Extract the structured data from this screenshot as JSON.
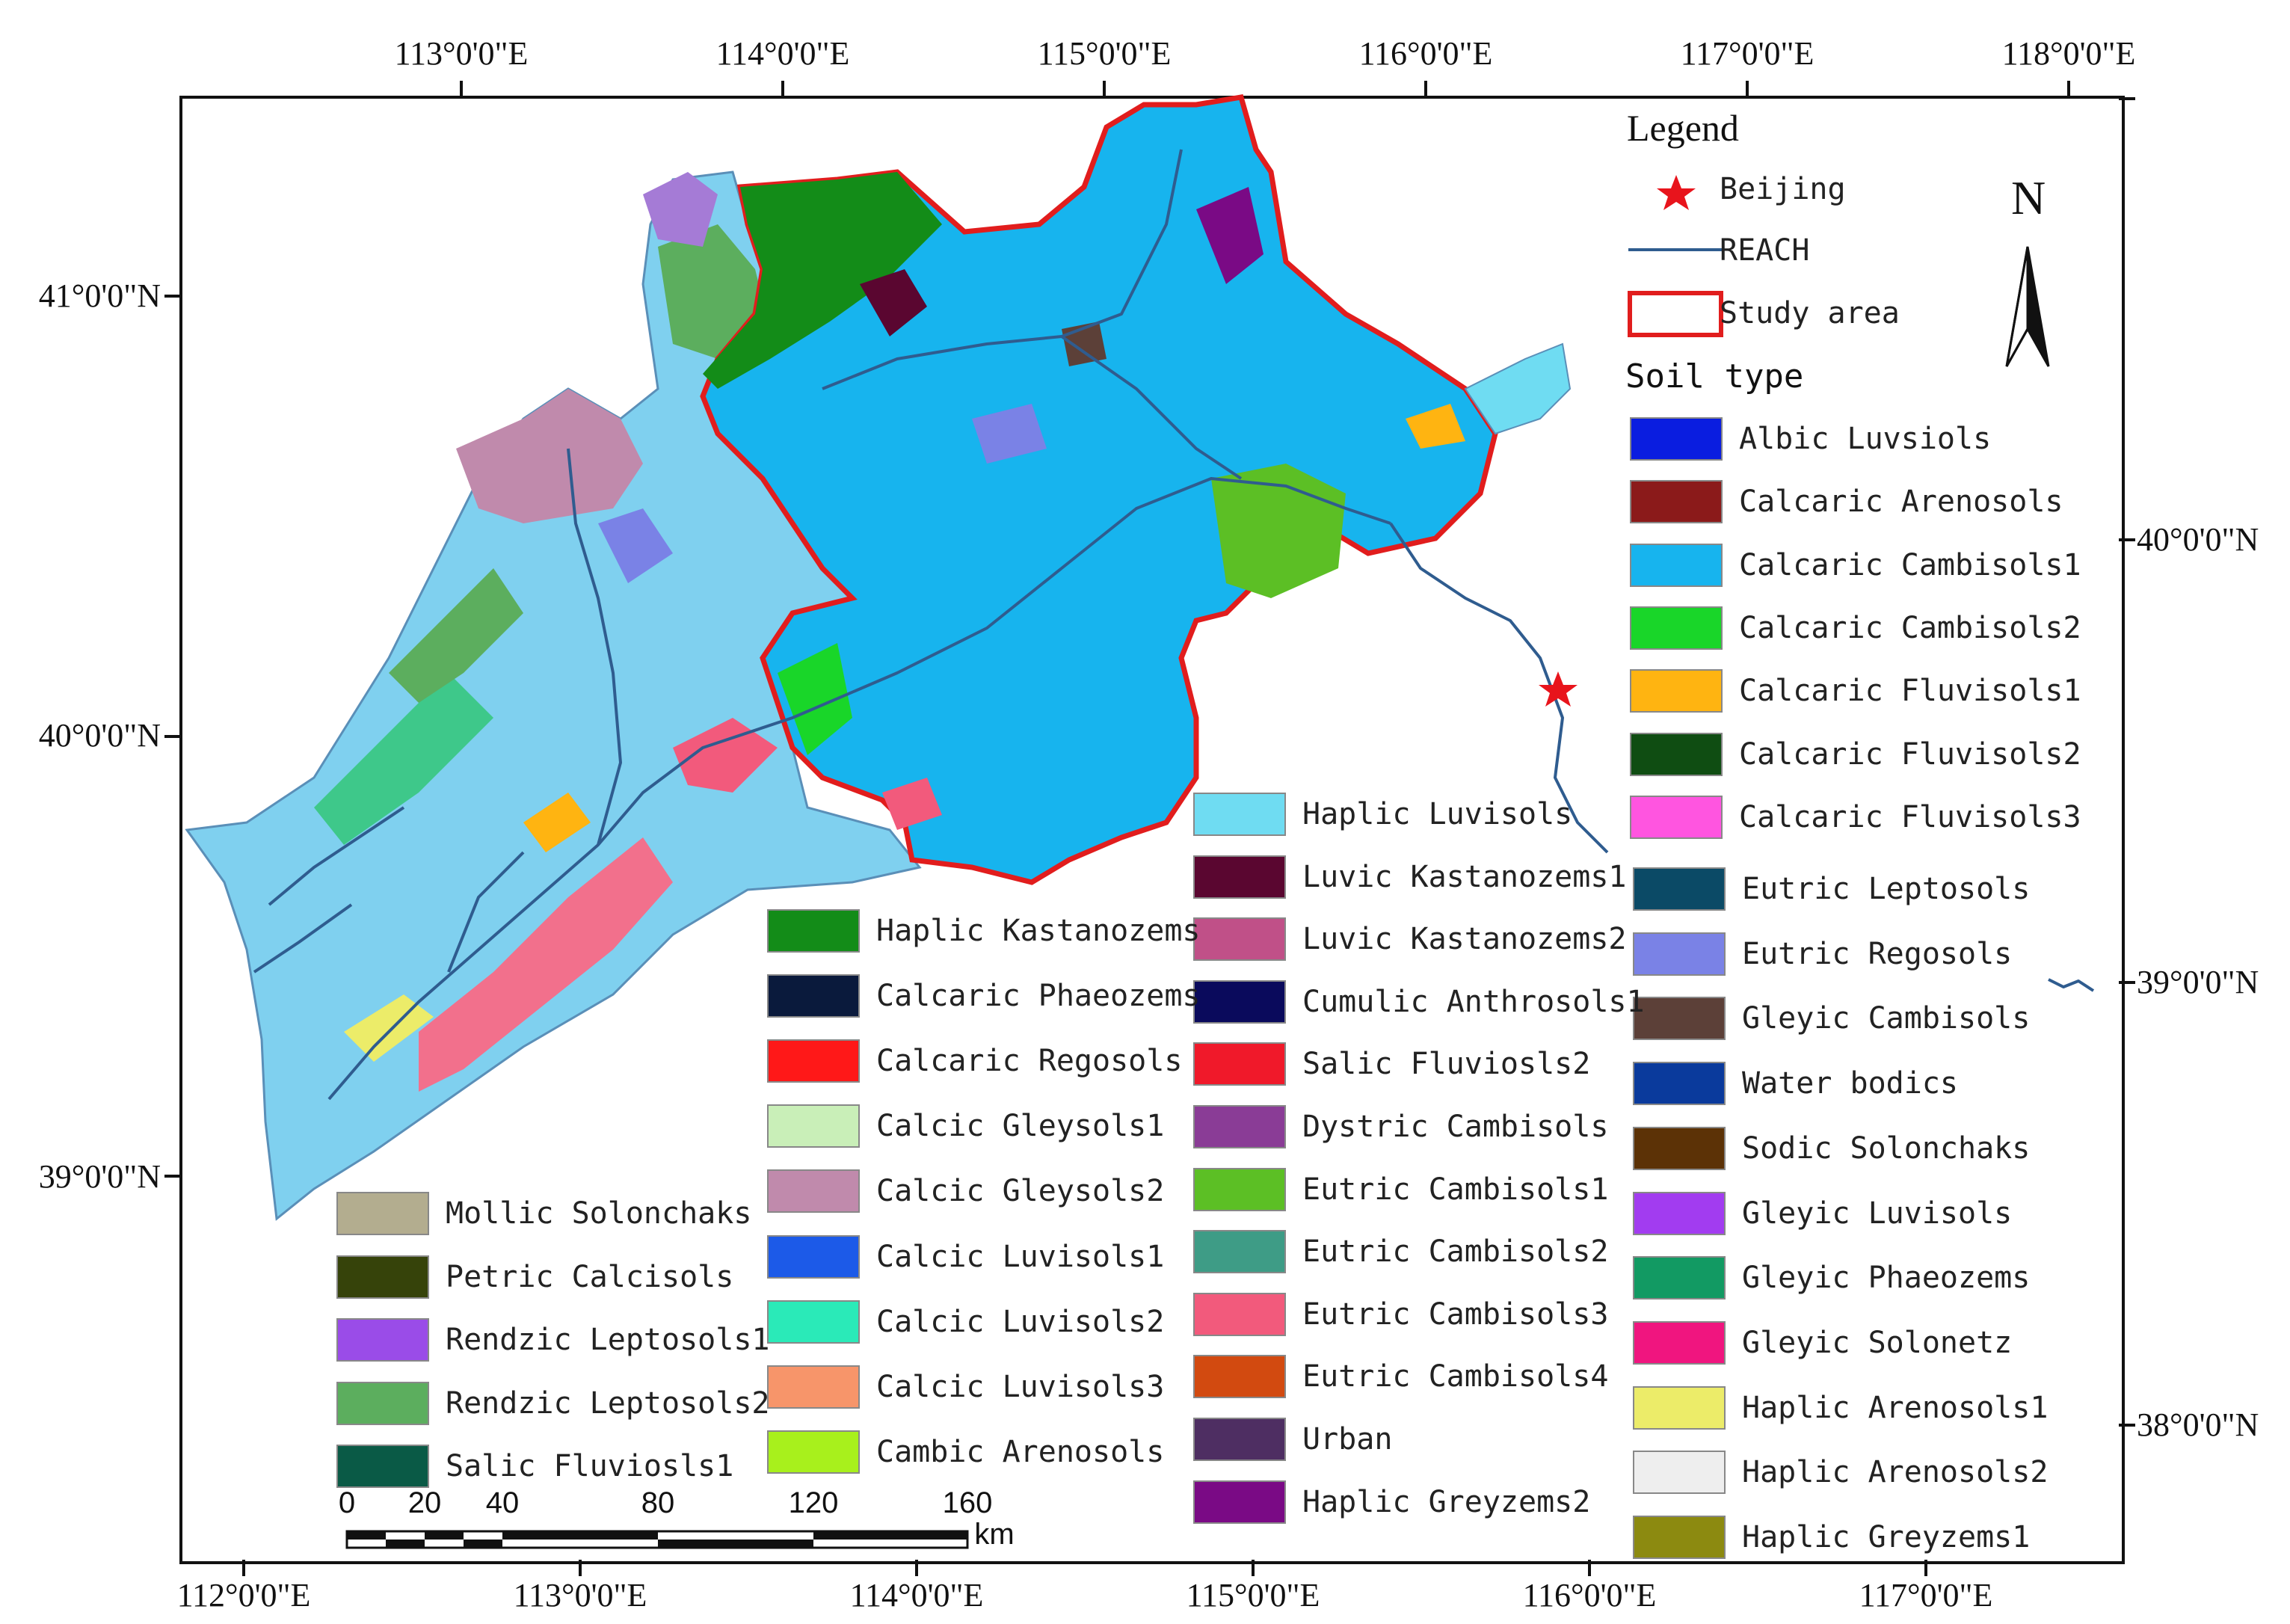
{
  "axes": {
    "top_lon": [
      "113°0'0\"E",
      "114°0'0\"E",
      "115°0'0\"E",
      "116°0'0\"E",
      "117°0'0\"E",
      "118°0'0\"E"
    ],
    "bottom_lon": [
      "112°0'0\"E",
      "113°0'0\"E",
      "114°0'0\"E",
      "115°0'0\"E",
      "116°0'0\"E",
      "117°0'0\"E"
    ],
    "left_lat": [
      "41°0'0\"N",
      "40°0'0\"N",
      "39°0'0\"N"
    ],
    "right_lat": [
      "40°0'0\"N",
      "39°0'0\"N",
      "38°0'0\"N"
    ]
  },
  "legend": {
    "title": "Legend",
    "beijing": "Beijing",
    "reach": "REACH",
    "study_area": "Study area",
    "soil_type_title": "Soil type",
    "colors": {
      "beijing": "#e8141c",
      "reach": "#2f5c8f",
      "study_area": "#e11d1d"
    }
  },
  "north_arrow": "N",
  "scale_bar": {
    "labels": [
      "0",
      "20",
      "40",
      "80",
      "120",
      "160"
    ],
    "unit": "km"
  },
  "soil_types": [
    {
      "name": "Albic Luvsiols",
      "color": "#0a1de0"
    },
    {
      "name": "Calcaric Arenosols",
      "color": "#8b1a1a"
    },
    {
      "name": "Calcaric Cambisols1",
      "color": "#17b4ee"
    },
    {
      "name": "Calcaric Cambisols2",
      "color": "#19d629"
    },
    {
      "name": "Calcaric Fluvisols1",
      "color": "#ffb411"
    },
    {
      "name": "Calcaric Fluvisols2",
      "color": "#0f4d12"
    },
    {
      "name": "Calcaric Fluvisols3",
      "color": "#ff55e0"
    },
    {
      "name": "Eutric Leptosols",
      "color": "#0b4a66"
    },
    {
      "name": "Eutric Regosols",
      "color": "#7a82e6"
    },
    {
      "name": "Gleyic Cambisols",
      "color": "#5c4038"
    },
    {
      "name": "Water bodics",
      "color": "#0a3a9c"
    },
    {
      "name": "Sodic Solonchaks",
      "color": "#5c3206"
    },
    {
      "name": "Gleyic Luvisols",
      "color": "#a23cf0"
    },
    {
      "name": "Gleyic Phaeozems",
      "color": "#129a63"
    },
    {
      "name": "Gleyic Solonetz",
      "color": "#f0157f"
    },
    {
      "name": "Haplic Arenosols1",
      "color": "#ecec69"
    },
    {
      "name": "Haplic Arenosols2",
      "color": "#eeeeee"
    },
    {
      "name": "Haplic Greyzems1",
      "color": "#8c8a10"
    },
    {
      "name": "Haplic Luvisols",
      "color": "#6fdcf2"
    },
    {
      "name": "Luvic Kastanozems1",
      "color": "#5a0630"
    },
    {
      "name": "Luvic Kastanozems2",
      "color": "#c05088"
    },
    {
      "name": "Cumulic Anthrosols1",
      "color": "#0a0a5c"
    },
    {
      "name": "Salic Fluviosls2",
      "color": "#f0192a"
    },
    {
      "name": "Dystric Cambisols",
      "color": "#8a3c96"
    },
    {
      "name": "Eutric Cambisols1",
      "color": "#5cbf25"
    },
    {
      "name": "Eutric Cambisols2",
      "color": "#3e9c86"
    },
    {
      "name": "Eutric Cambisols3",
      "color": "#f25a7c"
    },
    {
      "name": "Eutric Cambisols4",
      "color": "#d24a10"
    },
    {
      "name": "Urban",
      "color": "#4e2e62"
    },
    {
      "name": "Haplic Greyzems2",
      "color": "#7a0a85"
    },
    {
      "name": "Haplic Kastanozems",
      "color": "#138c18"
    },
    {
      "name": "Calcaric Phaeozems",
      "color": "#0a1a3c"
    },
    {
      "name": "Calcaric Regosols",
      "color": "#ff1818"
    },
    {
      "name": "Calcic Gleysols1",
      "color": "#c9efb8"
    },
    {
      "name": "Calcic Gleysols2",
      "color": "#c08aac"
    },
    {
      "name": "Calcic Luvisols1",
      "color": "#1c5ae8"
    },
    {
      "name": "Calcic Luvisols2",
      "color": "#2aeab8"
    },
    {
      "name": "Calcic Luvisols3",
      "color": "#f7956a"
    },
    {
      "name": "Cambic Arenosols",
      "color": "#a8f01c"
    },
    {
      "name": "Mollic Solonchaks",
      "color": "#b3ad8f"
    },
    {
      "name": "Petric Calcisols",
      "color": "#36430a"
    },
    {
      "name": "Rendzic Leptosols1",
      "color": "#9a4ce8"
    },
    {
      "name": "Rendzic Leptosols2",
      "color": "#5cae5e"
    },
    {
      "name": "Salic Fluviosls1",
      "color": "#0a5a46"
    }
  ]
}
